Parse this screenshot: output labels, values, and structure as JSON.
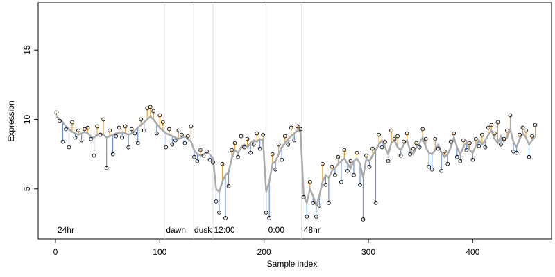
{
  "chart_data": {
    "type": "scatter",
    "xlabel": "Sample index",
    "ylabel": "Expression",
    "xlim": [
      -16.6,
      475.6
    ],
    "ylim": [
      1.4,
      18.4
    ],
    "xticks": [
      0,
      100,
      200,
      300,
      400
    ],
    "yticks": [
      5,
      10,
      15
    ],
    "vlines": [
      104.5,
      132.5,
      151,
      202,
      236
    ],
    "annotations": [
      {
        "text": "24hr",
        "x": 2
      },
      {
        "text": "dawn",
        "x": 106
      },
      {
        "text": "dusk",
        "x": 133
      },
      {
        "text": "12:00",
        "x": 152
      },
      {
        "text": "0:00",
        "x": 204
      },
      {
        "text": "48hr",
        "x": 238
      }
    ],
    "point_color": "#000000",
    "fit_color": "#aaaaaa",
    "above_color": "#f0a030",
    "below_color": "#6a95dc",
    "vline_color": "#dddddd",
    "annotation_color": "#aaaaaa",
    "x": [
      1,
      4,
      7,
      10,
      13,
      16,
      19,
      22,
      25,
      28,
      31,
      34,
      37,
      40,
      43,
      46,
      49,
      52,
      55,
      58,
      61,
      64,
      67,
      70,
      73,
      76,
      79,
      82,
      85,
      88,
      91,
      94,
      97,
      100,
      103,
      106,
      109,
      112,
      115,
      118,
      121,
      124,
      127,
      130,
      133,
      136,
      139,
      142,
      145,
      148,
      151,
      154,
      157,
      160,
      163,
      166,
      169,
      172,
      175,
      178,
      181,
      184,
      187,
      190,
      193,
      196,
      199,
      202,
      205,
      208,
      211,
      214,
      217,
      220,
      223,
      226,
      229,
      232,
      235,
      238,
      241,
      244,
      247,
      250,
      253,
      256,
      259,
      262,
      265,
      268,
      271,
      274,
      277,
      280,
      283,
      286,
      289,
      292,
      295,
      298,
      301,
      304,
      307,
      310,
      313,
      316,
      319,
      322,
      325,
      328,
      331,
      334,
      337,
      340,
      343,
      346,
      349,
      352,
      355,
      358,
      361,
      364,
      367,
      370,
      373,
      376,
      379,
      382,
      385,
      388,
      391,
      394,
      397,
      400,
      403,
      406,
      409,
      412,
      415,
      418,
      421,
      424,
      427,
      430,
      433,
      436,
      439,
      442,
      445,
      448,
      451,
      454,
      457,
      460
    ],
    "fit": [
      10.2,
      10.0,
      9.8,
      9.5,
      9.3,
      9.1,
      9.0,
      8.9,
      9.0,
      9.1,
      9.0,
      8.8,
      8.7,
      8.9,
      9.0,
      8.9,
      8.7,
      8.8,
      8.9,
      9.0,
      9.0,
      9.1,
      9.0,
      8.9,
      9.0,
      9.2,
      9.4,
      9.6,
      9.8,
      10.0,
      10.2,
      10.0,
      9.7,
      9.4,
      9.2,
      9.0,
      8.9,
      8.8,
      8.7,
      8.6,
      8.7,
      8.8,
      8.6,
      8.4,
      7.8,
      7.5,
      7.4,
      7.5,
      7.6,
      7.5,
      7.2,
      5.0,
      4.8,
      5.5,
      6.0,
      6.2,
      7.2,
      7.8,
      7.6,
      8.0,
      8.2,
      8.0,
      8.3,
      8.5,
      8.4,
      8.6,
      8.5,
      4.8,
      5.5,
      6.8,
      7.0,
      7.5,
      8.0,
      8.3,
      8.6,
      8.8,
      9.0,
      9.2,
      9.1,
      4.5,
      4.0,
      5.0,
      4.5,
      3.8,
      4.5,
      5.5,
      6.0,
      5.8,
      6.3,
      6.5,
      6.8,
      7.0,
      7.2,
      6.8,
      6.5,
      7.0,
      7.2,
      6.8,
      5.8,
      7.2,
      7.0,
      7.4,
      7.8,
      8.2,
      8.5,
      8.0,
      7.5,
      8.3,
      8.5,
      8.0,
      7.8,
      8.2,
      8.5,
      7.8,
      7.5,
      8.0,
      8.3,
      8.7,
      8.0,
      7.6,
      7.5,
      7.8,
      8.2,
      7.6,
      7.3,
      7.5,
      8.0,
      8.7,
      8.0,
      7.5,
      8.0,
      8.4,
      7.8,
      7.6,
      8.1,
      8.5,
      8.2,
      8.5,
      8.9,
      9.2,
      8.6,
      8.3,
      8.8,
      8.4,
      8.7,
      9.3,
      8.4,
      8.0,
      8.6,
      9.0,
      8.7,
      8.2,
      8.5,
      8.8
    ],
    "y": [
      10.5,
      9.9,
      8.4,
      9.3,
      8.0,
      9.8,
      8.7,
      9.2,
      8.5,
      9.3,
      9.4,
      8.6,
      7.4,
      9.5,
      8.9,
      10.0,
      6.5,
      9.2,
      7.5,
      8.8,
      9.4,
      8.7,
      9.5,
      8.0,
      9.3,
      9.0,
      8.3,
      10.0,
      9.2,
      10.8,
      10.9,
      10.6,
      9.0,
      10.3,
      9.8,
      8.0,
      9.3,
      8.2,
      8.5,
      9.2,
      8.9,
      8.3,
      8.8,
      9.5,
      7.3,
      7.0,
      7.8,
      7.4,
      7.7,
      7.1,
      6.9,
      4.1,
      3.3,
      6.8,
      2.9,
      5.2,
      7.8,
      8.3,
      7.3,
      8.8,
      8.0,
      8.6,
      7.6,
      8.2,
      9.0,
      7.9,
      8.9,
      3.3,
      2.9,
      7.5,
      6.4,
      8.2,
      7.1,
      8.8,
      8.2,
      9.4,
      8.5,
      9.5,
      9.3,
      4.4,
      3.0,
      5.5,
      4.0,
      3.0,
      3.8,
      6.8,
      5.3,
      4.0,
      6.6,
      6.0,
      7.3,
      5.5,
      7.8,
      6.3,
      7.0,
      6.0,
      7.6,
      5.3,
      2.8,
      7.4,
      6.6,
      7.9,
      4.0,
      8.9,
      8.0,
      8.4,
      7.0,
      9.2,
      8.6,
      8.8,
      7.4,
      8.4,
      9.0,
      7.5,
      7.9,
      8.3,
      8.0,
      9.3,
      8.6,
      6.6,
      6.4,
      8.6,
      7.9,
      6.3,
      7.7,
      6.8,
      8.4,
      9.0,
      7.3,
      7.0,
      8.5,
      7.8,
      8.3,
      7.1,
      8.6,
      8.1,
      8.9,
      8.0,
      9.4,
      9.6,
      9.0,
      9.8,
      8.2,
      8.6,
      9.2,
      10.3,
      7.7,
      7.6,
      8.9,
      9.4,
      9.2,
      7.3,
      8.8,
      9.6
    ]
  }
}
